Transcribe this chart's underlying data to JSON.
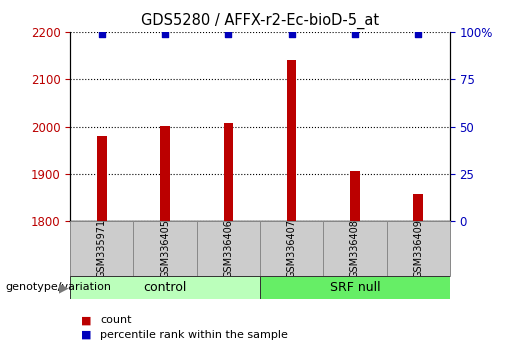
{
  "title": "GDS5280 / AFFX-r2-Ec-bioD-5_at",
  "samples": [
    "GSM335971",
    "GSM336405",
    "GSM336406",
    "GSM336407",
    "GSM336408",
    "GSM336409"
  ],
  "counts": [
    1979,
    2001,
    2007,
    2140,
    1907,
    1857
  ],
  "percentile_ranks": [
    99,
    99,
    99,
    99,
    99,
    99
  ],
  "bar_color": "#bb0000",
  "dot_color": "#0000bb",
  "ylim_left": [
    1800,
    2200
  ],
  "yticks_left": [
    1800,
    1900,
    2000,
    2100,
    2200
  ],
  "ylim_right": [
    0,
    100
  ],
  "yticks_right": [
    0,
    25,
    50,
    75,
    100
  ],
  "yticklabels_right": [
    "0",
    "25",
    "50",
    "75",
    "100%"
  ],
  "control_color": "#bbffbb",
  "srfnull_color": "#66ee66",
  "sample_box_color": "#cccccc",
  "legend_count_label": "count",
  "legend_pct_label": "percentile rank within the sample",
  "genotype_label": "genotype/variation",
  "bar_width": 0.15
}
